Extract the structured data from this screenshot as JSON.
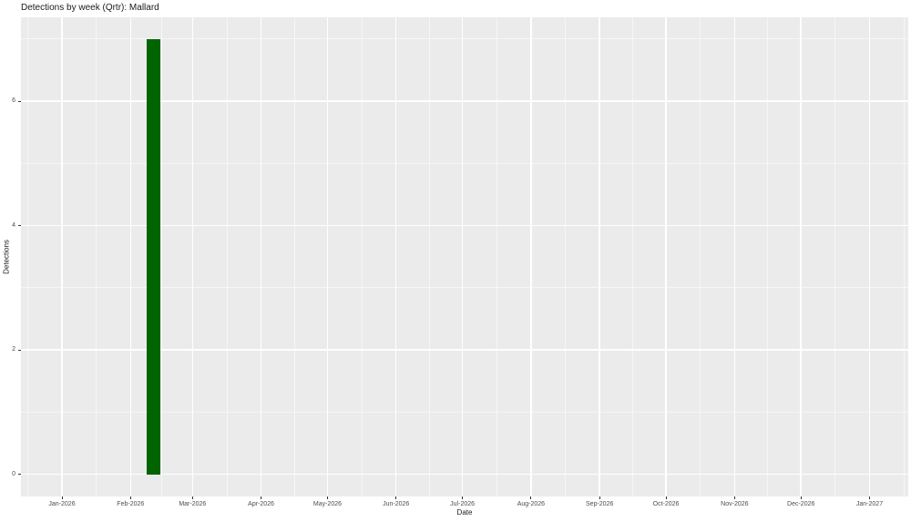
{
  "chart_data": {
    "type": "bar",
    "title": "Detections by week (Qrtr): Mallard",
    "xlabel": "Date",
    "ylabel": "Detections",
    "x_tick_labels": [
      "Jan-2026",
      "Feb-2026",
      "Mar-2026",
      "Apr-2026",
      "May-2026",
      "Jun-2026",
      "Jul-2026",
      "Aug-2026",
      "Sep-2026",
      "Oct-2026",
      "Nov-2026",
      "Dec-2026",
      "Jan-2027"
    ],
    "y_ticks": [
      0,
      2,
      4,
      6
    ],
    "ylim": [
      0,
      7
    ],
    "grid": true,
    "legend": "none",
    "series": [
      {
        "name": "Mallard",
        "points": [
          {
            "week_start": "2026-02-08",
            "value": 7
          }
        ]
      }
    ],
    "bar_width_days": 6.3,
    "colors": {
      "bar_fill": "#006400",
      "panel_bg": "#EBEBEB",
      "grid": "#FFFFFF",
      "axis_text": "#4D4D4D",
      "tick_mark": "#333333",
      "title_text": "#1A1A1A"
    }
  }
}
